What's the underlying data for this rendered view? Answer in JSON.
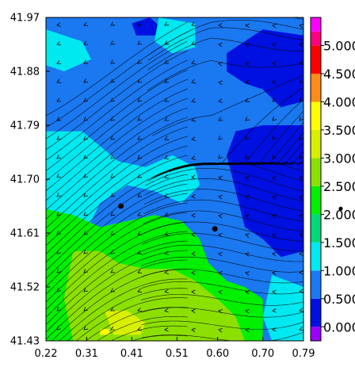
{
  "chart_data": {
    "type": "heatmap",
    "subtype": "filled-contour with streamlines (wind field map)",
    "title": "",
    "xlabel": "",
    "ylabel": "",
    "x_ticks": [
      "0.22",
      "0.31",
      "0.41",
      "0.51",
      "0.60",
      "0.70",
      "0.79"
    ],
    "y_ticks": [
      "41.97",
      "41.88",
      "41.79",
      "41.70",
      "41.61",
      "41.52",
      "41.43"
    ],
    "xlim": [
      0.22,
      0.79
    ],
    "ylim": [
      41.43,
      41.97
    ],
    "grid": false,
    "colorbar": {
      "labels": [
        "0.000",
        "0.500",
        "1.000",
        "1.500",
        "2.000",
        "2.500",
        "3.000",
        "3.500",
        "4.000",
        "4.500",
        "5.000"
      ],
      "levels": [
        {
          "from": -0.25,
          "to": 0.0,
          "color": "#9b00ff"
        },
        {
          "from": 0.0,
          "to": 0.5,
          "color": "#0010e0"
        },
        {
          "from": 0.5,
          "to": 1.0,
          "color": "#1a78f0"
        },
        {
          "from": 1.0,
          "to": 1.5,
          "color": "#00e8f0"
        },
        {
          "from": 1.5,
          "to": 2.0,
          "color": "#00d87a"
        },
        {
          "from": 2.0,
          "to": 2.5,
          "color": "#00f000"
        },
        {
          "from": 2.5,
          "to": 3.0,
          "color": "#8ce000"
        },
        {
          "from": 3.0,
          "to": 3.5,
          "color": "#d8f000"
        },
        {
          "from": 3.5,
          "to": 4.0,
          "color": "#ffff00"
        },
        {
          "from": 4.0,
          "to": 4.5,
          "color": "#ff8c1a"
        },
        {
          "from": 4.5,
          "to": 5.0,
          "color": "#ff0000"
        },
        {
          "from": 5.0,
          "to": 5.25,
          "color": "#ff0080"
        },
        {
          "from": 5.25,
          "to": 5.5,
          "color": "#ff00ff"
        }
      ],
      "range": [
        -0.25,
        5.5
      ]
    },
    "markers": [
      {
        "x": 0.386,
        "y": 41.655
      },
      {
        "x": 0.594,
        "y": 41.617
      }
    ],
    "external_marker": {
      "value": 2.1
    },
    "field_regions": [
      {
        "level": 0.75,
        "polygon": [
          [
            0.22,
            41.97
          ],
          [
            0.79,
            41.97
          ],
          [
            0.79,
            41.43
          ],
          [
            0.22,
            41.43
          ]
        ]
      },
      {
        "level": 0.25,
        "polygon": [
          [
            0.62,
            41.91
          ],
          [
            0.7,
            41.95
          ],
          [
            0.79,
            41.94
          ],
          [
            0.79,
            41.83
          ],
          [
            0.74,
            41.82
          ],
          [
            0.7,
            41.85
          ],
          [
            0.66,
            41.86
          ],
          [
            0.62,
            41.88
          ]
        ]
      },
      {
        "level": 0.25,
        "polygon": [
          [
            0.64,
            41.78
          ],
          [
            0.7,
            41.79
          ],
          [
            0.79,
            41.79
          ],
          [
            0.79,
            41.58
          ],
          [
            0.74,
            41.57
          ],
          [
            0.7,
            41.6
          ],
          [
            0.66,
            41.62
          ],
          [
            0.64,
            41.68
          ],
          [
            0.62,
            41.74
          ]
        ]
      },
      {
        "level": 0.25,
        "polygon": [
          [
            0.41,
            41.96
          ],
          [
            0.45,
            41.97
          ],
          [
            0.48,
            41.95
          ],
          [
            0.46,
            41.94
          ],
          [
            0.42,
            41.94
          ]
        ]
      },
      {
        "level": 1.25,
        "polygon": [
          [
            0.22,
            41.95
          ],
          [
            0.3,
            41.93
          ],
          [
            0.32,
            41.9
          ],
          [
            0.26,
            41.88
          ],
          [
            0.22,
            41.89
          ]
        ]
      },
      {
        "level": 1.25,
        "polygon": [
          [
            0.22,
            41.78
          ],
          [
            0.3,
            41.78
          ],
          [
            0.38,
            41.73
          ],
          [
            0.44,
            41.72
          ],
          [
            0.5,
            41.74
          ],
          [
            0.55,
            41.72
          ],
          [
            0.56,
            41.69
          ],
          [
            0.52,
            41.66
          ],
          [
            0.46,
            41.68
          ],
          [
            0.4,
            41.69
          ],
          [
            0.34,
            41.66
          ],
          [
            0.3,
            41.6
          ],
          [
            0.24,
            41.59
          ],
          [
            0.22,
            41.6
          ]
        ]
      },
      {
        "level": 1.25,
        "polygon": [
          [
            0.47,
            41.97
          ],
          [
            0.55,
            41.96
          ],
          [
            0.55,
            41.92
          ],
          [
            0.5,
            41.91
          ],
          [
            0.46,
            41.93
          ]
        ]
      },
      {
        "level": 1.25,
        "polygon": [
          [
            0.22,
            41.56
          ],
          [
            0.26,
            41.55
          ],
          [
            0.28,
            41.48
          ],
          [
            0.26,
            41.44
          ],
          [
            0.22,
            41.43
          ]
        ]
      },
      {
        "level": 1.25,
        "polygon": [
          [
            0.72,
            41.54
          ],
          [
            0.79,
            41.52
          ],
          [
            0.79,
            41.43
          ],
          [
            0.72,
            41.43
          ],
          [
            0.7,
            41.47
          ]
        ]
      },
      {
        "level": 2.25,
        "polygon": [
          [
            0.22,
            41.65
          ],
          [
            0.28,
            41.64
          ],
          [
            0.34,
            41.62
          ],
          [
            0.4,
            41.63
          ],
          [
            0.46,
            41.64
          ],
          [
            0.52,
            41.63
          ],
          [
            0.56,
            41.6
          ],
          [
            0.58,
            41.56
          ],
          [
            0.62,
            41.53
          ],
          [
            0.66,
            41.52
          ],
          [
            0.7,
            41.5
          ],
          [
            0.7,
            41.43
          ],
          [
            0.22,
            41.43
          ]
        ]
      },
      {
        "level": 2.75,
        "polygon": [
          [
            0.28,
            41.58
          ],
          [
            0.34,
            41.58
          ],
          [
            0.38,
            41.56
          ],
          [
            0.44,
            41.55
          ],
          [
            0.5,
            41.55
          ],
          [
            0.55,
            41.53
          ],
          [
            0.6,
            41.5
          ],
          [
            0.64,
            41.47
          ],
          [
            0.66,
            41.43
          ],
          [
            0.28,
            41.43
          ],
          [
            0.26,
            41.5
          ]
        ]
      },
      {
        "level": 3.25,
        "polygon": [
          [
            0.35,
            41.48
          ],
          [
            0.4,
            41.48
          ],
          [
            0.44,
            41.46
          ],
          [
            0.43,
            41.44
          ],
          [
            0.37,
            41.44
          ]
        ]
      },
      {
        "level": 3.75,
        "polygon": [
          [
            0.34,
            41.45
          ],
          [
            0.36,
            41.45
          ],
          [
            0.36,
            41.44
          ],
          [
            0.34,
            41.44
          ]
        ]
      }
    ]
  }
}
